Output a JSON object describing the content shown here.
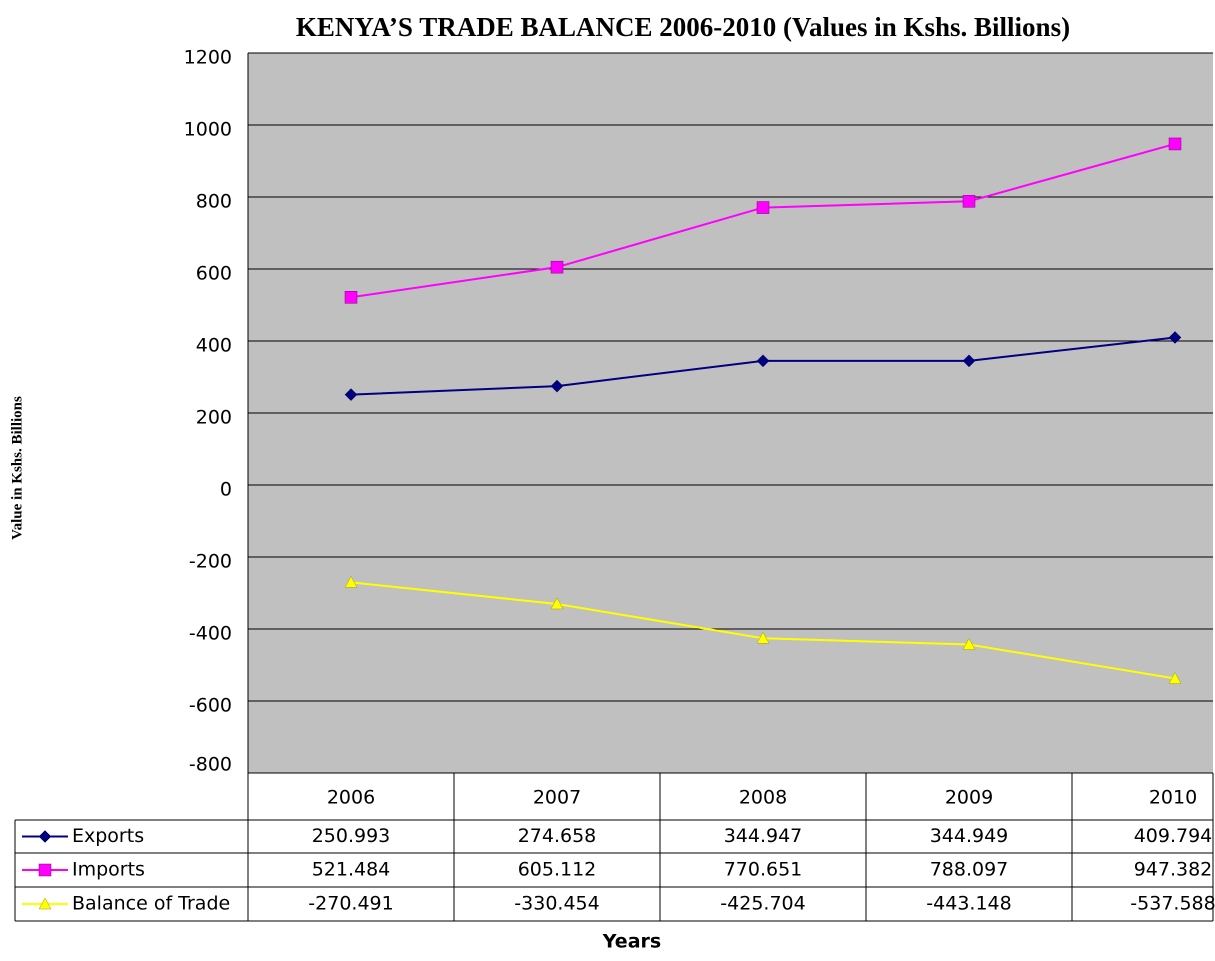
{
  "chart_data": {
    "type": "line",
    "title": "KENYA’S TRADE BALANCE 2006-2010 (Values in Kshs. Billions)",
    "y_label": "Value in Kshs. Billions",
    "x_label": "Years",
    "categories": [
      "2006",
      "2007",
      "2008",
      "2009",
      "2010"
    ],
    "series": [
      {
        "name": "Exports",
        "color": "#000080",
        "marker": "diamond",
        "values": [
          250.993,
          274.658,
          344.947,
          344.949,
          409.794
        ]
      },
      {
        "name": "Imports",
        "color": "#ff00ff",
        "marker": "square",
        "values": [
          521.484,
          605.112,
          770.651,
          788.097,
          947.382
        ]
      },
      {
        "name": "Balance of Trade",
        "color": "#ffff00",
        "marker": "triangle",
        "values": [
          -270.491,
          -330.454,
          -425.704,
          -443.148,
          -537.588
        ]
      }
    ],
    "ylim": [
      -800,
      1200
    ],
    "yticks": [
      -800,
      -600,
      -400,
      -200,
      0,
      200,
      400,
      600,
      800,
      1000,
      1200
    ],
    "grid": true,
    "background": "#c0c0c0"
  }
}
